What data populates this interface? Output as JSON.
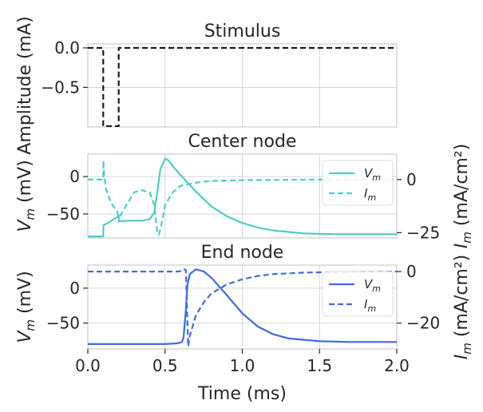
{
  "chart_data": [
    {
      "type": "line",
      "title": "Stimulus",
      "ylabel": "Amplitude (mA)",
      "xlim": [
        0,
        2
      ],
      "ylim": [
        -1.0,
        0.05
      ],
      "yticks": [
        0.0,
        -0.5
      ],
      "ytick_labels": [
        "0.0",
        "−0.5"
      ],
      "grid": true,
      "series": [
        {
          "color": "#1a1a1a",
          "style": "dashed",
          "x": [
            0,
            0.1,
            0.1,
            0.2,
            0.2,
            2.0
          ],
          "y": [
            0,
            0,
            -0.99,
            -0.99,
            0,
            0
          ]
        }
      ]
    },
    {
      "type": "line",
      "title": "Center node",
      "ylabel": "V_m (mV)",
      "ylabel_right": "I_m (mA/cm²)",
      "xlim": [
        0,
        2
      ],
      "ylim": [
        -82,
        30
      ],
      "ylim_right": [
        -27.5,
        12
      ],
      "yticks": [
        0,
        -50
      ],
      "ytick_labels": [
        "0",
        "−50"
      ],
      "yticks_right": [
        0,
        -25
      ],
      "ytick_labels_right": [
        "0",
        "−25"
      ],
      "grid": true,
      "legend": "top-right",
      "legend_entries": [
        {
          "label": "V",
          "sub": "m",
          "style": "solid"
        },
        {
          "label": "I",
          "sub": "m",
          "style": "dashed"
        }
      ],
      "series": [
        {
          "name": "V_m",
          "axis": "left",
          "color": "#4ecdc4",
          "style": "solid",
          "x": [
            0,
            0.1,
            0.101,
            0.13,
            0.16,
            0.19,
            0.2,
            0.201,
            0.25,
            0.3,
            0.35,
            0.4,
            0.43,
            0.45,
            0.47,
            0.5,
            0.52,
            0.55,
            0.6,
            0.7,
            0.8,
            0.9,
            1.0,
            1.1,
            1.2,
            1.4,
            1.6,
            1.8,
            2.0
          ],
          "y": [
            -80,
            -80,
            -65,
            -62,
            -58,
            -54,
            -52,
            -60,
            -59,
            -59,
            -59,
            -57,
            -48,
            -20,
            10,
            24,
            22,
            14,
            2,
            -20,
            -40,
            -53,
            -62,
            -68,
            -72,
            -76,
            -77,
            -77,
            -77
          ]
        },
        {
          "name": "I_m",
          "axis": "right",
          "color": "#4ecdc4",
          "style": "dashed",
          "x": [
            0,
            0.1,
            0.101,
            0.105,
            0.11,
            0.12,
            0.15,
            0.19,
            0.2,
            0.21,
            0.25,
            0.3,
            0.35,
            0.4,
            0.43,
            0.45,
            0.46,
            0.48,
            0.5,
            0.55,
            0.6,
            0.7,
            0.8,
            1.0,
            1.5,
            2.0
          ],
          "y": [
            0,
            0,
            9,
            3,
            0,
            -5,
            -11,
            -15,
            -18,
            -17,
            -12,
            -6,
            -5,
            -6,
            -12,
            -25,
            -26,
            -20,
            -12,
            -6,
            -3,
            -1.5,
            -0.6,
            -0.3,
            0,
            0
          ]
        }
      ]
    },
    {
      "type": "line",
      "title": "End node",
      "ylabel": "V_m (mV)",
      "ylabel_right": "I_m (mA/cm²)",
      "xlabel": "Time (ms)",
      "xlim": [
        0,
        2
      ],
      "ylim": [
        -87,
        33
      ],
      "ylim_right": [
        -30,
        2.5
      ],
      "yticks": [
        0,
        -50
      ],
      "ytick_labels": [
        "0",
        "−50"
      ],
      "yticks_right": [
        0,
        -20
      ],
      "ytick_labels_right": [
        "0",
        "−20"
      ],
      "xticks": [
        0.0,
        0.5,
        1.0,
        1.5,
        2.0
      ],
      "xtick_labels": [
        "0.0",
        "0.5",
        "1.0",
        "1.5",
        "2.0"
      ],
      "grid": true,
      "legend": "top-right",
      "legend_entries": [
        {
          "label": "V",
          "sub": "m",
          "style": "solid"
        },
        {
          "label": "I",
          "sub": "m",
          "style": "dashed"
        }
      ],
      "series": [
        {
          "name": "V_m",
          "axis": "left",
          "color": "#4169e1",
          "style": "solid",
          "x": [
            0,
            0.5,
            0.58,
            0.61,
            0.62,
            0.635,
            0.645,
            0.66,
            0.7,
            0.75,
            0.8,
            0.9,
            1.0,
            1.1,
            1.2,
            1.3,
            1.5,
            1.7,
            2.0
          ],
          "y": [
            -80,
            -80,
            -79,
            -77,
            -70,
            -30,
            5,
            20,
            27,
            24,
            15,
            -10,
            -36,
            -55,
            -66,
            -72,
            -76,
            -77,
            -77
          ]
        },
        {
          "name": "I_m",
          "axis": "right",
          "color": "#4169e1",
          "style": "dashed",
          "x": [
            0,
            0.58,
            0.6,
            0.62,
            0.635,
            0.645,
            0.65,
            0.66,
            0.7,
            0.75,
            0.8,
            0.9,
            1.0,
            1.1,
            1.2,
            1.4,
            1.6,
            2.0
          ],
          "y": [
            0,
            0,
            0.2,
            1,
            0.5,
            -20,
            -29,
            -25,
            -17,
            -12,
            -8.5,
            -5,
            -3,
            -1.7,
            -1,
            -0.4,
            -0.2,
            0
          ]
        }
      ]
    }
  ]
}
